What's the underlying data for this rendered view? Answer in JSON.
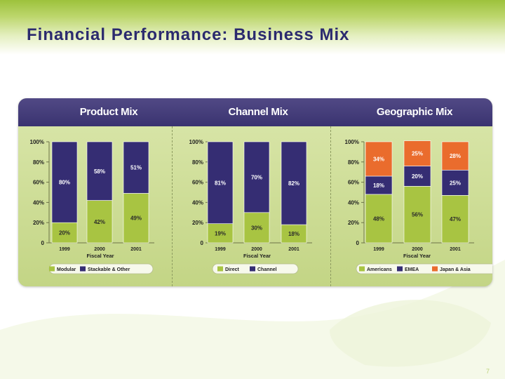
{
  "slide": {
    "title": "Financial Performance: Business Mix",
    "page_number": "7"
  },
  "colors": {
    "navy": "#352d73",
    "green": "#a8c442",
    "orange": "#ea6c2d",
    "header": "#433b7a"
  },
  "chart_data": [
    {
      "type": "bar",
      "stacked": true,
      "title": "Product Mix",
      "xlabel": "Fiscal Year",
      "ylabel": "",
      "categories": [
        "1999",
        "2000",
        "2001"
      ],
      "ylim": [
        0,
        100
      ],
      "yticks": [
        "0",
        "20%",
        "40%",
        "60%",
        "80%",
        "100%"
      ],
      "series": [
        {
          "name": "Modular",
          "color": "#a8c442",
          "values": [
            20,
            42,
            49
          ],
          "labels": [
            "20%",
            "42%",
            "49%"
          ]
        },
        {
          "name": "Stackable & Other",
          "color": "#352d73",
          "values": [
            80,
            58,
            51
          ],
          "labels": [
            "80%",
            "58%",
            "51%"
          ]
        }
      ]
    },
    {
      "type": "bar",
      "stacked": true,
      "title": "Channel Mix",
      "xlabel": "Fiscal Year",
      "ylabel": "",
      "categories": [
        "1999",
        "2000",
        "2001"
      ],
      "ylim": [
        0,
        100
      ],
      "yticks": [
        "0",
        "20%",
        "40%",
        "60%",
        "80%",
        "100%"
      ],
      "series": [
        {
          "name": "Direct",
          "color": "#a8c442",
          "values": [
            19,
            30,
            18
          ],
          "labels": [
            "19%",
            "30%",
            "18%"
          ]
        },
        {
          "name": "Channel",
          "color": "#352d73",
          "values": [
            81,
            70,
            82
          ],
          "labels": [
            "81%",
            "70%",
            "82%"
          ]
        }
      ]
    },
    {
      "type": "bar",
      "stacked": true,
      "title": "Geographic Mix",
      "xlabel": "Fiscal Year",
      "ylabel": "",
      "categories": [
        "1999",
        "2000",
        "2001"
      ],
      "ylim": [
        0,
        100
      ],
      "yticks": [
        "0",
        "20%",
        "40%",
        "60%",
        "80%",
        "100%"
      ],
      "series": [
        {
          "name": "Americans",
          "color": "#a8c442",
          "values": [
            48,
            56,
            47
          ],
          "labels": [
            "48%",
            "56%",
            "47%"
          ]
        },
        {
          "name": "EMEA",
          "color": "#352d73",
          "values": [
            18,
            20,
            25
          ],
          "labels": [
            "18%",
            "20%",
            "25%"
          ]
        },
        {
          "name": "Japan & Asia",
          "color": "#ea6c2d",
          "values": [
            34,
            25,
            28
          ],
          "labels": [
            "34%",
            "25%",
            "28%"
          ]
        }
      ]
    }
  ]
}
